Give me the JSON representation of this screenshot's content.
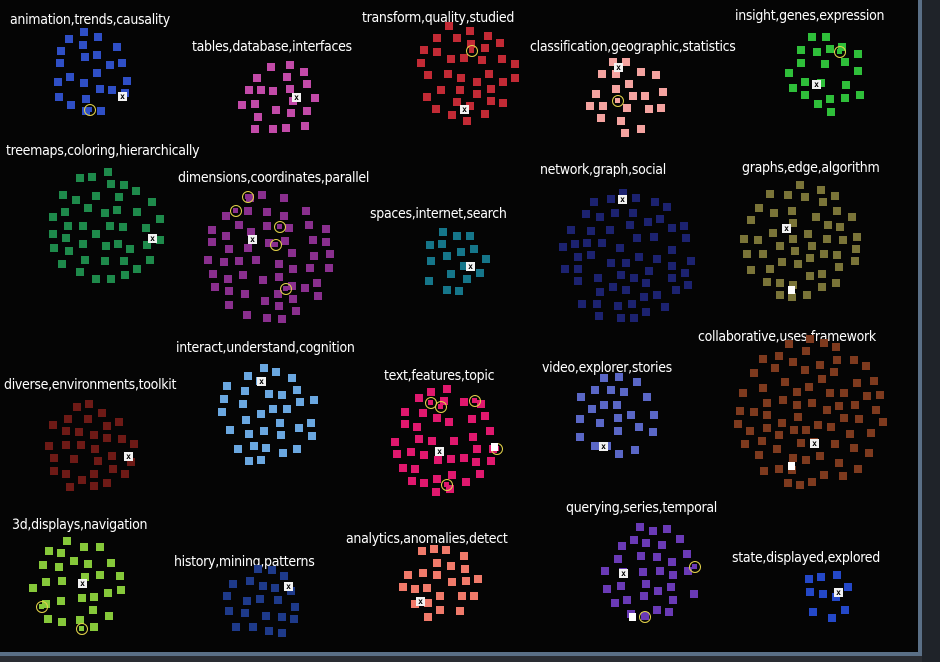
{
  "clusters": [
    {
      "id": "c1",
      "label": "animation,trends,causality",
      "color": "#2f4fc6"
    },
    {
      "id": "c2",
      "label": "tables,database,interfaces",
      "color": "#c24aa8"
    },
    {
      "id": "c3",
      "label": "transform,quality,studied",
      "color": "#c22a35"
    },
    {
      "id": "c4",
      "label": "classification,geographic,statistics",
      "color": "#f4a3a0"
    },
    {
      "id": "c5",
      "label": "insight,genes,expression",
      "color": "#2fbf3a"
    },
    {
      "id": "c6",
      "label": "treemaps,coloring,hierarchically",
      "color": "#1e8a4b"
    },
    {
      "id": "c7",
      "label": "dimensions,coordinates,parallel",
      "color": "#8a2f8e"
    },
    {
      "id": "c8",
      "label": "spaces,internet,search",
      "color": "#15768a"
    },
    {
      "id": "c9",
      "label": "network,graph,social",
      "color": "#1c2270"
    },
    {
      "id": "c10",
      "label": "graphs,edge,algorithm",
      "color": "#7a7438"
    },
    {
      "id": "c11",
      "label": "interact,understand,cognition",
      "color": "#6aa7e0"
    },
    {
      "id": "c12",
      "label": "diverse,environments,toolkit",
      "color": "#6e1a16"
    },
    {
      "id": "c13",
      "label": "text,features,topic",
      "color": "#e0186e"
    },
    {
      "id": "c14",
      "label": "video,explorer,stories",
      "color": "#5a67c6"
    },
    {
      "id": "c15",
      "label": "collaborative,uses,framework",
      "color": "#7e3a1e"
    },
    {
      "id": "c16",
      "label": "3d,displays,navigation",
      "color": "#86c83a"
    },
    {
      "id": "c17",
      "label": "history,mining,patterns",
      "color": "#1e3a8a"
    },
    {
      "id": "c18",
      "label": "analytics,anomalies,detect",
      "color": "#f07a6a"
    },
    {
      "id": "c19",
      "label": "querying,series,temporal",
      "color": "#6a3ab6"
    },
    {
      "id": "c20",
      "label": "state,displayed,explored",
      "color": "#2448c8"
    }
  ],
  "marker_symbol": "x"
}
